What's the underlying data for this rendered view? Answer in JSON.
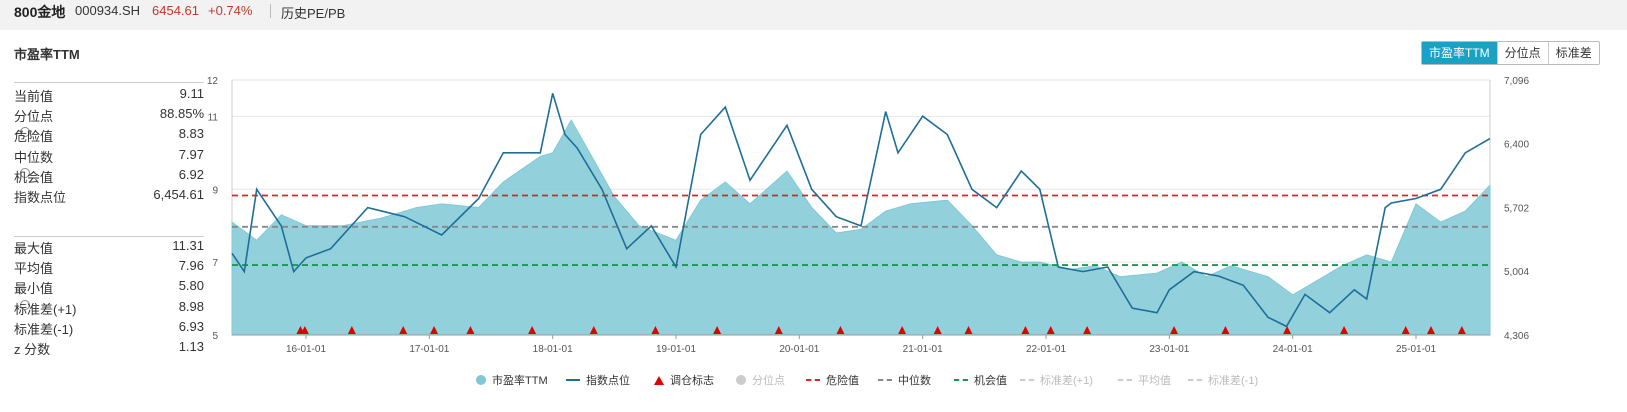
{
  "header": {
    "name": "800金地",
    "code": "000934.SH",
    "price": "6454.61",
    "change": "+0.74%",
    "link": "历史PE/PB"
  },
  "panel": {
    "title": "市盈率TTM",
    "tabs": [
      "市盈率TTM",
      "分位点",
      "标准差"
    ],
    "active_tab": 0
  },
  "stats_top": [
    {
      "label": "当前值",
      "value": "9.11",
      "gear": false
    },
    {
      "label": "分位点",
      "value": "88.85%",
      "gear": false
    },
    {
      "label": "危险值",
      "value": "8.83",
      "gear": true
    },
    {
      "label": "中位数",
      "value": "7.97",
      "gear": false
    },
    {
      "label": "机会值",
      "value": "6.92",
      "gear": true
    },
    {
      "label": "指数点位",
      "value": "6,454.61",
      "gear": false
    }
  ],
  "stats_bottom": [
    {
      "label": "最大值",
      "value": "11.31",
      "gear": false
    },
    {
      "label": "平均值",
      "value": "7.96",
      "gear": false
    },
    {
      "label": "最小值",
      "value": "5.80",
      "gear": false
    },
    {
      "label": "标准差(+1)",
      "value": "8.98",
      "gear": true
    },
    {
      "label": "标准差(-1)",
      "value": "6.93",
      "gear": false
    },
    {
      "label": "z 分数",
      "value": "1.13",
      "gear": false
    }
  ],
  "legend": [
    {
      "label": "市盈率TTM",
      "marker": "circle",
      "color": "#7fc9d6",
      "active": true
    },
    {
      "label": "指数点位",
      "marker": "line",
      "color": "#1f6e97",
      "active": true
    },
    {
      "label": "调仓标志",
      "marker": "triangle",
      "color": "#e00000",
      "active": true
    },
    {
      "label": "分位点",
      "marker": "circle",
      "color": "#cccccc",
      "active": false
    },
    {
      "label": "危险值",
      "marker": "dash",
      "color": "#d62728",
      "active": true
    },
    {
      "label": "中位数",
      "marker": "dash",
      "color": "#888888",
      "active": true
    },
    {
      "label": "机会值",
      "marker": "dash",
      "color": "#1a9850",
      "active": true
    },
    {
      "label": "标准差(+1)",
      "marker": "dash",
      "color": "#cccccc",
      "active": false
    },
    {
      "label": "平均值",
      "marker": "dash",
      "color": "#cccccc",
      "active": false
    },
    {
      "label": "标准差(-1)",
      "marker": "dash",
      "color": "#cccccc",
      "active": false
    }
  ],
  "chart_data": {
    "type": "area",
    "x_ticks": [
      "16-01-01",
      "17-01-01",
      "18-01-01",
      "19-01-01",
      "20-01-01",
      "21-01-01",
      "22-01-01",
      "23-01-01",
      "24-01-01",
      "25-01-01"
    ],
    "x_range": [
      2015.4,
      2025.6
    ],
    "y_left": {
      "ticks": [
        "5",
        "7",
        "9",
        "11",
        "12"
      ],
      "range": [
        5,
        12
      ]
    },
    "y_right": {
      "ticks": [
        "4,306",
        "5,004",
        "5,702",
        "6,400",
        "7,096"
      ],
      "range": [
        4306,
        7096
      ]
    },
    "reference_lines": [
      {
        "name": "危险值",
        "value": 8.83,
        "color": "#d62728"
      },
      {
        "name": "中位数",
        "value": 7.97,
        "color": "#888888"
      },
      {
        "name": "机会值",
        "value": 6.92,
        "color": "#1a9850"
      }
    ],
    "series": [
      {
        "name": "市盈率TTM",
        "axis": "left",
        "color": "#7fc9d6",
        "x": [
          2015.4,
          2015.6,
          2015.8,
          2016.0,
          2016.3,
          2016.6,
          2016.9,
          2017.1,
          2017.4,
          2017.6,
          2017.9,
          2018.0,
          2018.15,
          2018.3,
          2018.5,
          2018.7,
          2019.0,
          2019.2,
          2019.4,
          2019.6,
          2019.9,
          2020.1,
          2020.3,
          2020.5,
          2020.7,
          2020.9,
          2021.2,
          2021.4,
          2021.6,
          2021.8,
          2021.95,
          2022.2,
          2022.4,
          2022.6,
          2022.9,
          2023.1,
          2023.3,
          2023.5,
          2023.8,
          2024.0,
          2024.2,
          2024.4,
          2024.6,
          2024.8,
          2025.0,
          2025.2,
          2025.4,
          2025.6
        ],
        "values": [
          8.1,
          7.6,
          8.3,
          8.0,
          8.0,
          8.2,
          8.5,
          8.6,
          8.5,
          9.2,
          9.9,
          10.0,
          10.9,
          10.0,
          8.8,
          8.0,
          7.6,
          8.7,
          9.2,
          8.6,
          9.5,
          8.5,
          7.8,
          7.9,
          8.4,
          8.6,
          8.7,
          8.0,
          7.2,
          7.0,
          7.0,
          6.8,
          6.9,
          6.6,
          6.7,
          7.0,
          6.6,
          6.9,
          6.6,
          6.1,
          6.5,
          6.9,
          7.2,
          7.0,
          8.6,
          8.1,
          8.4,
          9.11
        ]
      },
      {
        "name": "指数点位",
        "axis": "right",
        "color": "#1f6e97",
        "x": [
          2015.4,
          2015.5,
          2015.6,
          2015.8,
          2015.9,
          2016.0,
          2016.2,
          2016.5,
          2016.8,
          2017.1,
          2017.4,
          2017.6,
          2017.9,
          2018.0,
          2018.1,
          2018.2,
          2018.4,
          2018.6,
          2018.8,
          2019.0,
          2019.2,
          2019.4,
          2019.6,
          2019.9,
          2020.1,
          2020.3,
          2020.5,
          2020.7,
          2020.8,
          2021.0,
          2021.2,
          2021.4,
          2021.6,
          2021.8,
          2021.95,
          2022.1,
          2022.3,
          2022.5,
          2022.7,
          2022.9,
          2023.0,
          2023.2,
          2023.4,
          2023.6,
          2023.8,
          2023.95,
          2024.1,
          2024.3,
          2024.5,
          2024.6,
          2024.75,
          2024.8,
          2025.0,
          2025.2,
          2025.4,
          2025.6
        ],
        "values": [
          5200,
          5000,
          5900,
          5500,
          5000,
          5150,
          5250,
          5700,
          5600,
          5400,
          5800,
          6300,
          6300,
          6950,
          6500,
          6350,
          5900,
          5250,
          5500,
          5050,
          6500,
          6800,
          6000,
          6600,
          5900,
          5600,
          5500,
          6750,
          6300,
          6700,
          6500,
          5900,
          5700,
          6100,
          5900,
          5050,
          5000,
          5050,
          4600,
          4550,
          4800,
          5000,
          4950,
          4850,
          4500,
          4400,
          4750,
          4550,
          4800,
          4700,
          5700,
          5750,
          5800,
          5900,
          6300,
          6455
        ]
      }
    ],
    "rebalance_markers": [
      "2015-12-15",
      "2015-12-28",
      "2016-05-15",
      "2016-10-15",
      "2017-01-15",
      "2017-05-01",
      "2017-11-01",
      "2018-05-01",
      "2018-11-01",
      "2019-05-01",
      "2019-11-01",
      "2020-05-01",
      "2020-11-01",
      "2021-02-15",
      "2021-05-15",
      "2021-11-01",
      "2022-01-15",
      "2022-05-01",
      "2023-01-15",
      "2023-06-15",
      "2023-12-15",
      "2024-06-01",
      "2024-12-01",
      "2025-02-15",
      "2025-05-15"
    ]
  }
}
